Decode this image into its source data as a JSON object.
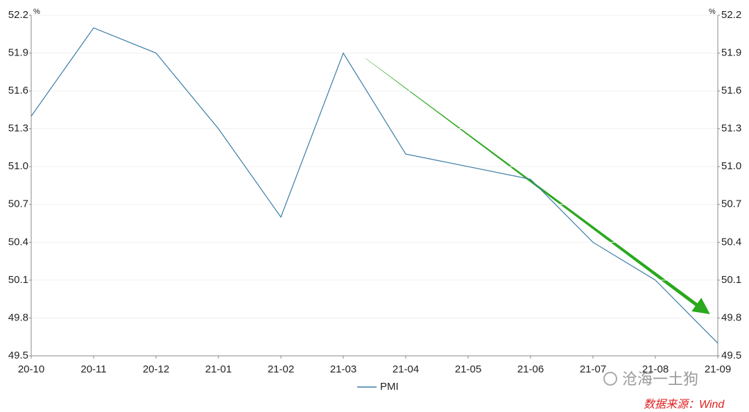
{
  "chart_data": {
    "type": "line",
    "categories": [
      "20-10",
      "20-11",
      "20-12",
      "21-01",
      "21-02",
      "21-03",
      "21-04",
      "21-05",
      "21-06",
      "21-07",
      "21-08",
      "21-09"
    ],
    "series": [
      {
        "name": "PMI",
        "color": "#3a7ca5",
        "values": [
          51.4,
          52.1,
          51.9,
          51.3,
          50.6,
          51.9,
          51.1,
          51.0,
          50.9,
          50.4,
          50.1,
          49.6
        ]
      }
    ],
    "ylim": [
      49.5,
      52.2
    ],
    "yticks": [
      49.5,
      49.8,
      50.1,
      50.4,
      50.7,
      {
        "value": 51.0,
        "label": "51.0"
      },
      51.3,
      51.6,
      51.9,
      52.2
    ],
    "y2lim": [
      49.5,
      52.2
    ],
    "y2ticks": [
      49.5,
      49.8,
      50.1,
      50.4,
      50.7,
      {
        "value": 51.0,
        "label": "51.0"
      },
      51.3,
      51.6,
      51.9,
      52.2
    ],
    "y_unit": "%",
    "y2_unit": "%",
    "grid": true,
    "legend": "bottom",
    "annotations": [
      "沧海一土狗",
      "数据来源：Wind"
    ]
  }
}
